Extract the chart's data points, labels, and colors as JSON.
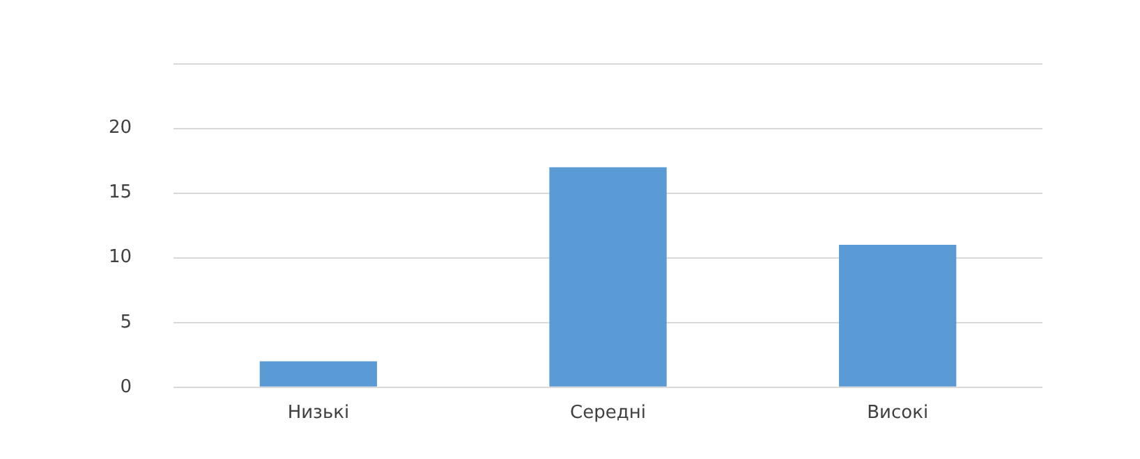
{
  "chart_data": {
    "type": "bar",
    "categories": [
      "Низькі",
      "Середні",
      "Високі"
    ],
    "values": [
      2,
      17,
      11
    ],
    "color": "#5b9bd5",
    "ylim": [
      0,
      25
    ],
    "yticks": [
      0,
      5,
      10,
      15,
      20,
      {
        "value": 25,
        "label": null
      }
    ],
    "grid": "y",
    "legend": false
  }
}
